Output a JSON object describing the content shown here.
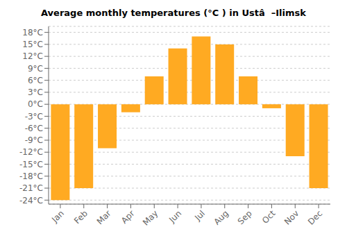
{
  "chart_data": {
    "type": "bar",
    "title": "Average monthly temperatures (°C ) in Ustâ  –Ilimsk",
    "categories": [
      "Jan",
      "Feb",
      "Mar",
      "Apr",
      "May",
      "Jun",
      "Jul",
      "Aug",
      "Sep",
      "Oct",
      "Nov",
      "Dec"
    ],
    "values": [
      -24,
      -21,
      -11,
      -2,
      7,
      14,
      17,
      15,
      7,
      -1,
      -13,
      -21
    ],
    "color": "#FFAA22",
    "ylim": [
      -25,
      19.5
    ],
    "yticks": [
      {
        "value": -24,
        "label": "-24°C"
      },
      {
        "value": -21,
        "label": "-21°C"
      },
      {
        "value": -18,
        "label": "-18°C"
      },
      {
        "value": -15,
        "label": "-15°C"
      },
      {
        "value": -12,
        "label": "-12°C"
      },
      {
        "value": -9,
        "label": "-9°C"
      },
      {
        "value": -6,
        "label": "-6°C"
      },
      {
        "value": -3,
        "label": "-3°C"
      },
      {
        "value": 0,
        "label": "0°C"
      },
      {
        "value": 3,
        "label": "3°C"
      },
      {
        "value": 6,
        "label": "6°C"
      },
      {
        "value": 9,
        "label": "9°C"
      },
      {
        "value": 12,
        "label": "12°C"
      },
      {
        "value": 15,
        "label": "15°C"
      },
      {
        "value": 18,
        "label": "18°C"
      }
    ],
    "grid": true
  }
}
